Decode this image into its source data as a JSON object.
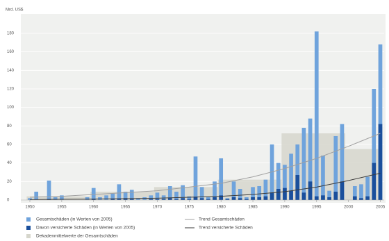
{
  "chart_data": {
    "type": "bar",
    "y_label": "Mrd. US$",
    "x": [
      1950,
      1951,
      1952,
      1953,
      1954,
      1955,
      1956,
      1957,
      1958,
      1959,
      1960,
      1961,
      1962,
      1963,
      1964,
      1965,
      1966,
      1967,
      1968,
      1969,
      1970,
      1971,
      1972,
      1973,
      1974,
      1975,
      1976,
      1977,
      1978,
      1979,
      1980,
      1981,
      1982,
      1983,
      1984,
      1985,
      1986,
      1987,
      1988,
      1989,
      1990,
      1991,
      1992,
      1993,
      1994,
      1995,
      1996,
      1997,
      1998,
      1999,
      2000,
      2001,
      2002,
      2003,
      2004,
      2005
    ],
    "series": [
      {
        "name": "Gesamtschäden (in Werten von 2005)",
        "color": "#6fa3dc",
        "values": [
          2,
          9,
          0,
          21,
          3,
          5,
          0,
          0,
          0,
          3,
          13,
          3,
          5,
          7,
          17,
          9,
          11,
          2,
          3,
          5,
          8,
          5,
          15,
          9,
          16,
          4,
          47,
          14,
          3,
          20,
          45,
          2,
          20,
          12,
          3,
          14,
          15,
          22,
          60,
          40,
          38,
          50,
          60,
          78,
          88,
          182,
          48,
          10,
          69,
          82,
          0,
          15,
          17,
          25,
          120,
          168
        ]
      },
      {
        "name": "Davon versicherte Schäden (in Werten von 2005)",
        "color": "#1a4f9c",
        "values": [
          0,
          0,
          0,
          1,
          0,
          0,
          0,
          0,
          0,
          0,
          1,
          0,
          0,
          1,
          1,
          2,
          1,
          0,
          0,
          1,
          1,
          1,
          2,
          1,
          2,
          1,
          3,
          2,
          1,
          3,
          5,
          1,
          3,
          2,
          1,
          3,
          3,
          4,
          8,
          12,
          13,
          10,
          27,
          8,
          20,
          4,
          5,
          3,
          9,
          20,
          0,
          4,
          2,
          4,
          40,
          82
        ]
      }
    ],
    "decade_means": {
      "name": "Dekadenmittelwerte der Gesamtschäden",
      "color": "#d6d6cc",
      "bins": [
        1950,
        1960,
        1970,
        1980,
        1990,
        2000,
        2005.6
      ],
      "values": [
        4,
        9,
        14,
        22,
        72,
        55
      ]
    },
    "trends": [
      {
        "name": "Trend Gesamtschäden",
        "color": "#a0a0a0",
        "x": [
          1950,
          1955,
          1960,
          1965,
          1970,
          1975,
          1980,
          1985,
          1990,
          1995,
          2000,
          2005
        ],
        "values": [
          3,
          4,
          6,
          8,
          10,
          14,
          18,
          25,
          34,
          45,
          58,
          72
        ]
      },
      {
        "name": "Trend versicherte Schäden",
        "color": "#3a3a3a",
        "x": [
          1950,
          1955,
          1960,
          1965,
          1970,
          1975,
          1980,
          1985,
          1990,
          1995,
          2000,
          2005
        ],
        "values": [
          0.5,
          0.8,
          1,
          1.5,
          2,
          3,
          4,
          6,
          9,
          14,
          21,
          29
        ]
      }
    ],
    "xlim": [
      1948.8,
      2005.6
    ],
    "ylim": [
      0,
      200
    ],
    "xticks": [
      1950,
      1955,
      1960,
      1965,
      1970,
      1975,
      1980,
      1985,
      1990,
      1995,
      2000,
      2005
    ],
    "yticks": [
      0,
      20,
      40,
      60,
      80,
      100,
      120,
      140,
      160,
      180
    ],
    "grid": true
  }
}
